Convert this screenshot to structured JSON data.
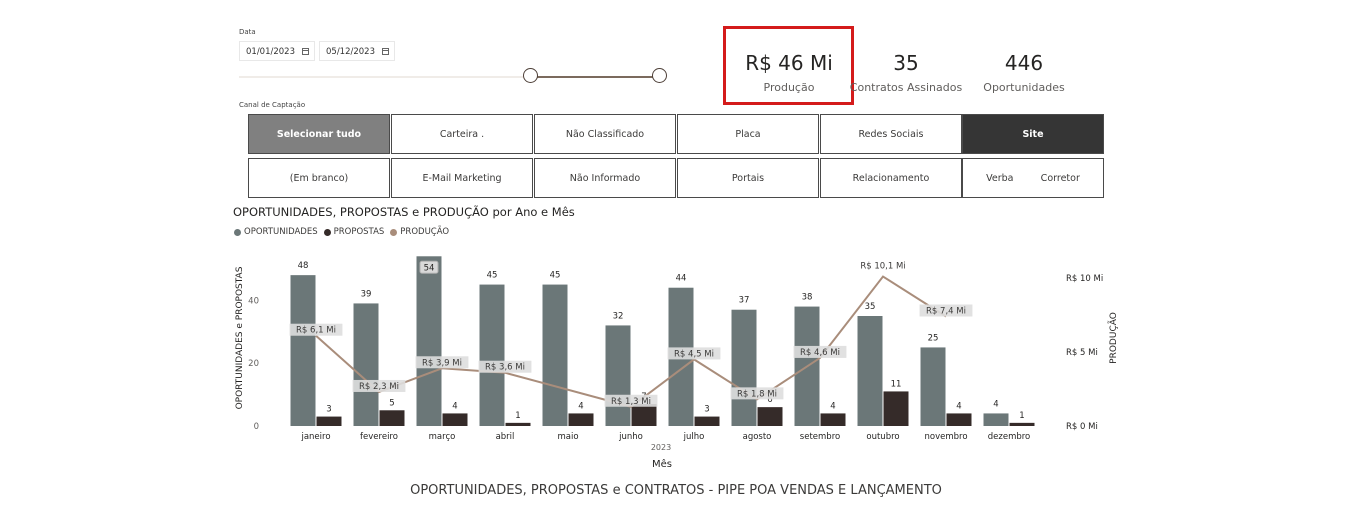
{
  "filters": {
    "date_label": "Data",
    "date_start": "01/01/2023",
    "date_end": "05/12/2023",
    "slider_range": [
      0.0,
      1.0
    ],
    "channel_label": "Canal de Captação",
    "tiles": [
      {
        "label": "Selecionar tudo",
        "state": "select-all"
      },
      {
        "label": "Carteira .",
        "state": "normal"
      },
      {
        "label": "Não Classificado",
        "state": "normal"
      },
      {
        "label": "Placa",
        "state": "normal"
      },
      {
        "label": "Redes Sociais",
        "state": "normal"
      },
      {
        "label": "Site",
        "state": "selected"
      },
      {
        "label": "(Em branco)",
        "state": "normal"
      },
      {
        "label": "E-Mail Marketing",
        "state": "normal"
      },
      {
        "label": "Não Informado",
        "state": "normal"
      },
      {
        "label": "Portais",
        "state": "normal"
      },
      {
        "label": "Relacionamento",
        "state": "normal"
      },
      {
        "label": "Verba         Corretor",
        "state": "normal"
      }
    ]
  },
  "kpis": [
    {
      "value": "R$ 46 Mi",
      "label": "Produção",
      "highlighted": true
    },
    {
      "value": "35",
      "label": "Contratos Assinados",
      "highlighted": false
    },
    {
      "value": "446",
      "label": "Oportunidades",
      "highlighted": false
    }
  ],
  "chart": {
    "title": "OPORTUNIDADES, PROPOSTAS e PRODUÇÃO por Ano e Mês",
    "legend": [
      {
        "name": "OPORTUNIDADES",
        "color": "#6b7778"
      },
      {
        "name": "PROPOSTAS",
        "color": "#352b29"
      },
      {
        "name": "PRODUÇÃO",
        "color": "#a98d7b"
      }
    ],
    "footer_title": "OPORTUNIDADES, PROPOSTAS e CONTRATOS - PIPE POA VENDAS E LANÇAMENTO"
  },
  "chart_data": {
    "type": "bar",
    "categories": [
      "janeiro",
      "fevereiro",
      "março",
      "abril",
      "maio",
      "junho",
      "julho",
      "agosto",
      "setembro",
      "outubro",
      "novembro",
      "dezembro"
    ],
    "year_label": "2023",
    "xlabel": "Mês",
    "ylabel": "OPORTUNIDADES e PROPOSTAS",
    "y2label": "PRODUÇÃO",
    "ylim": [
      0,
      56
    ],
    "yticks": [
      0,
      20,
      40
    ],
    "y2lim": [
      0,
      11.4
    ],
    "y2ticks": [
      {
        "value": 0,
        "label": "R$ 0 Mi"
      },
      {
        "value": 5,
        "label": "R$ 5 Mi"
      },
      {
        "value": 10,
        "label": "R$ 10 Mi"
      }
    ],
    "series": [
      {
        "name": "OPORTUNIDADES",
        "kind": "bar",
        "color": "#6b7778",
        "values": [
          48,
          39,
          54,
          45,
          45,
          32,
          44,
          37,
          38,
          35,
          25,
          4
        ],
        "labels": [
          "48",
          "39",
          "54",
          "45",
          "45",
          "32",
          "44",
          "37",
          "38",
          "35",
          "25",
          "4"
        ]
      },
      {
        "name": "PROPOSTAS",
        "kind": "bar",
        "color": "#352b29",
        "values": [
          3,
          5,
          4,
          1,
          4,
          7,
          3,
          6,
          4,
          11,
          4,
          1
        ],
        "labels": [
          "3",
          "5",
          "4",
          "1",
          "4",
          "7",
          "3",
          "6",
          "4",
          "11",
          "4",
          "1"
        ]
      },
      {
        "name": "PRODUÇÃO",
        "kind": "line",
        "color": "#a98d7b",
        "values": [
          6.1,
          2.3,
          3.9,
          3.6,
          null,
          1.3,
          4.5,
          1.8,
          4.6,
          10.1,
          7.4,
          null
        ],
        "labels": [
          "R$ 6,1 Mi",
          "R$ 2,3 Mi",
          "R$ 3,9 Mi",
          "R$ 3,6 Mi",
          "",
          "R$ 1,3 Mi",
          "R$ 4,5 Mi",
          "R$ 1,8 Mi",
          "R$ 4,6 Mi",
          "R$ 10,1 Mi",
          "R$ 7,4 Mi",
          ""
        ]
      }
    ]
  }
}
